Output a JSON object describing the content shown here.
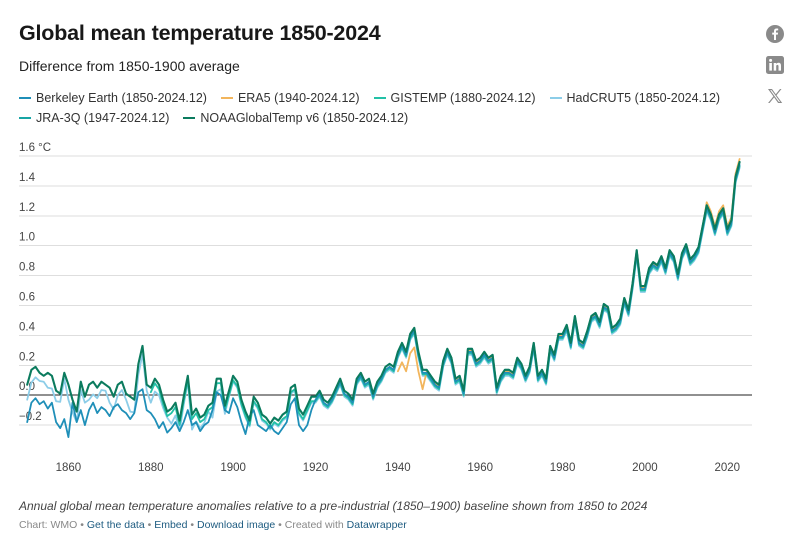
{
  "header": {
    "title": "Global mean temperature 1850-2024",
    "subtitle": "Difference from 1850-1900 average"
  },
  "share": {
    "icons": [
      "facebook-icon",
      "linkedin-icon",
      "x-icon"
    ],
    "color": "#8a8a8a"
  },
  "footer": {
    "note": "Annual global mean temperature anomalies relative to a pre-industrial (1850–1900) baseline shown from 1850 to 2024",
    "chart_by": "Chart: WMO",
    "get_data": "Get the data",
    "embed": "Embed",
    "download": "Download image",
    "created_with": "Created with",
    "datawrapper": "Datawrapper",
    "sep": "•"
  },
  "chart_data": {
    "type": "line",
    "title": "Global mean temperature 1850-2024",
    "subtitle": "Difference from 1850-1900 average",
    "xlabel": "",
    "ylabel": "",
    "y_unit_label": "1.6 °C",
    "xlim": [
      1848,
      2026
    ],
    "ylim": [
      -0.38,
      1.62
    ],
    "x_ticks": [
      1860,
      1880,
      1900,
      1920,
      1940,
      1960,
      1980,
      2000,
      2020
    ],
    "y_ticks": [
      -0.2,
      0.0,
      0.2,
      0.4,
      0.6,
      0.8,
      1.0,
      1.2,
      1.4,
      1.6
    ],
    "y_tick_labels": [
      "−0.2",
      "0.0",
      "0.2",
      "0.4",
      "0.6",
      "0.8",
      "1.0",
      "1.2",
      "1.4",
      "1.6 °C"
    ],
    "grid": true,
    "legend_position": "top",
    "series": [
      {
        "name": "Berkeley Earth (1850-2024.12)",
        "color": "#1f8fb8",
        "start": 1850,
        "offset": -0.01,
        "noise": [
          -0.18,
          -0.05,
          -0.02,
          -0.06,
          -0.04,
          -0.09,
          -0.05,
          -0.18,
          -0.22,
          -0.16,
          -0.28,
          -0.05,
          -0.18,
          -0.1,
          -0.2,
          -0.1,
          -0.05,
          -0.12,
          -0.08,
          -0.1,
          -0.14,
          -0.08,
          -0.06,
          -0.1,
          -0.12,
          -0.16,
          -0.12,
          0.02,
          0.04,
          -0.1,
          -0.12,
          -0.16,
          -0.22,
          -0.18,
          -0.25,
          -0.22,
          -0.18,
          -0.24,
          -0.18,
          -0.1,
          -0.2,
          -0.18,
          -0.24,
          -0.2,
          -0.18,
          -0.1,
          0.02,
          0.0,
          -0.1,
          -0.12,
          -0.02,
          -0.08,
          -0.18,
          -0.26,
          -0.14,
          -0.1,
          -0.2,
          -0.22,
          -0.24,
          -0.2,
          -0.24,
          -0.26,
          -0.22,
          -0.18,
          -0.06,
          -0.02,
          -0.2,
          -0.24,
          -0.2,
          -0.1
        ]
      },
      {
        "name": "ERA5 (1940-2024.12)",
        "color": "#f2b55c",
        "start": 1940,
        "offset": 0.0
      },
      {
        "name": "GISTEMP (1880-2024.12)",
        "color": "#22c1a7",
        "start": 1880,
        "offset": -0.02
      },
      {
        "name": "HadCRUT5 (1850-2024.12)",
        "color": "#8ccde8",
        "start": 1850,
        "offset": -0.03
      },
      {
        "name": "JRA-3Q (1947-2024.12)",
        "color": "#18a5a5",
        "start": 1947,
        "offset": 0.01
      },
      {
        "name": "NOAAGlobalTemp v6 (1850-2024.12)",
        "color": "#0b7b5e",
        "start": 1850,
        "offset": 0.01
      }
    ],
    "years": [
      1850,
      1851,
      1852,
      1853,
      1854,
      1855,
      1856,
      1857,
      1858,
      1859,
      1860,
      1861,
      1862,
      1863,
      1864,
      1865,
      1866,
      1867,
      1868,
      1869,
      1870,
      1871,
      1872,
      1873,
      1874,
      1875,
      1876,
      1877,
      1878,
      1879,
      1880,
      1881,
      1882,
      1883,
      1884,
      1885,
      1886,
      1887,
      1888,
      1889,
      1890,
      1891,
      1892,
      1893,
      1894,
      1895,
      1896,
      1897,
      1898,
      1899,
      1900,
      1901,
      1902,
      1903,
      1904,
      1905,
      1906,
      1907,
      1908,
      1909,
      1910,
      1911,
      1912,
      1913,
      1914,
      1915,
      1916,
      1917,
      1918,
      1919,
      1920,
      1921,
      1922,
      1923,
      1924,
      1925,
      1926,
      1927,
      1928,
      1929,
      1930,
      1931,
      1932,
      1933,
      1934,
      1935,
      1936,
      1937,
      1938,
      1939,
      1940,
      1941,
      1942,
      1943,
      1944,
      1945,
      1946,
      1947,
      1948,
      1949,
      1950,
      1951,
      1952,
      1953,
      1954,
      1955,
      1956,
      1957,
      1958,
      1959,
      1960,
      1961,
      1962,
      1963,
      1964,
      1965,
      1966,
      1967,
      1968,
      1969,
      1970,
      1971,
      1972,
      1973,
      1974,
      1975,
      1976,
      1977,
      1978,
      1979,
      1980,
      1981,
      1982,
      1983,
      1984,
      1985,
      1986,
      1987,
      1988,
      1989,
      1990,
      1991,
      1992,
      1993,
      1994,
      1995,
      1996,
      1997,
      1998,
      1999,
      2000,
      2001,
      2002,
      2003,
      2004,
      2005,
      2006,
      2007,
      2008,
      2009,
      2010,
      2011,
      2012,
      2013,
      2014,
      2015,
      2016,
      2017,
      2018,
      2019,
      2020,
      2021,
      2022,
      2023,
      2024
    ],
    "base_values": [
      0.06,
      0.16,
      0.18,
      0.14,
      0.12,
      0.14,
      0.12,
      0.02,
      0.0,
      0.14,
      0.06,
      -0.04,
      -0.12,
      0.08,
      -0.02,
      0.06,
      0.08,
      0.04,
      0.08,
      0.06,
      0.04,
      -0.02,
      0.06,
      0.08,
      0.0,
      -0.02,
      -0.04,
      0.2,
      0.32,
      0.06,
      0.04,
      0.1,
      0.06,
      -0.04,
      -0.12,
      -0.1,
      -0.06,
      -0.18,
      -0.02,
      0.12,
      -0.14,
      -0.1,
      -0.16,
      -0.14,
      -0.08,
      -0.06,
      0.1,
      0.1,
      -0.08,
      0.02,
      0.12,
      0.08,
      -0.04,
      -0.12,
      -0.18,
      -0.02,
      -0.06,
      -0.14,
      -0.16,
      -0.2,
      -0.16,
      -0.18,
      -0.14,
      -0.12,
      0.04,
      0.06,
      -0.1,
      -0.14,
      -0.08,
      -0.02,
      -0.02,
      0.02,
      -0.04,
      -0.06,
      -0.02,
      0.04,
      0.1,
      0.02,
      0.0,
      -0.04,
      0.1,
      0.14,
      0.08,
      0.1,
      0.0,
      0.08,
      0.12,
      0.18,
      0.2,
      0.18,
      0.28,
      0.34,
      0.28,
      0.4,
      0.44,
      0.28,
      0.16,
      0.16,
      0.12,
      0.08,
      0.06,
      0.22,
      0.3,
      0.24,
      0.1,
      0.12,
      0.02,
      0.3,
      0.3,
      0.22,
      0.24,
      0.28,
      0.24,
      0.26,
      0.04,
      0.12,
      0.16,
      0.16,
      0.14,
      0.24,
      0.2,
      0.12,
      0.18,
      0.34,
      0.12,
      0.16,
      0.1,
      0.32,
      0.26,
      0.4,
      0.4,
      0.46,
      0.34,
      0.52,
      0.36,
      0.34,
      0.42,
      0.52,
      0.54,
      0.48,
      0.6,
      0.58,
      0.44,
      0.46,
      0.5,
      0.64,
      0.56,
      0.74,
      0.96,
      0.72,
      0.72,
      0.84,
      0.88,
      0.86,
      0.92,
      0.84,
      0.96,
      0.92,
      0.8,
      0.94,
      1.0,
      0.9,
      0.93,
      0.98,
      1.12,
      1.26,
      1.2,
      1.1,
      1.2,
      1.24,
      1.1,
      1.16,
      1.45,
      1.55
    ]
  }
}
